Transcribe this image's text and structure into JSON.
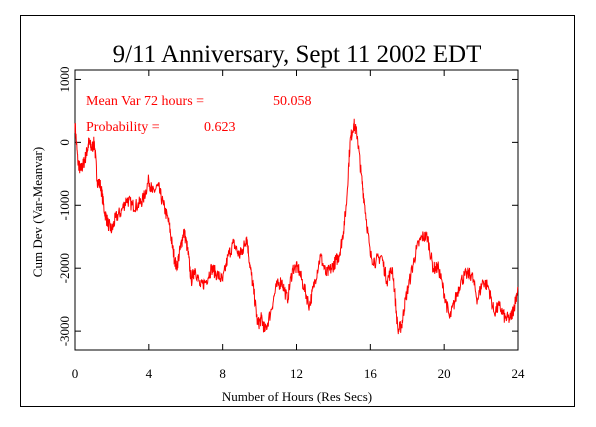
{
  "chart_data": {
    "type": "line",
    "title": "9/11 Anniversary, Sept 11 2002 EDT",
    "xlabel": "Number of Hours (Res Secs)",
    "ylabel": "Cum Dev (Var-Meanvar)",
    "xlim": [
      0,
      24
    ],
    "ylim": [
      -3300,
      1150
    ],
    "x_ticks": [
      0,
      4,
      8,
      12,
      16,
      20,
      24
    ],
    "y_ticks": [
      1000,
      0,
      -1000,
      -2000,
      -3000
    ],
    "line_color": "#ff0000",
    "annotation_color": "#ff0000",
    "annotations": [
      {
        "label": "Mean Var 72 hours =",
        "value": "50.058"
      },
      {
        "label": "Probability =",
        "value": "0.623"
      }
    ],
    "series": [
      {
        "x": [
          0,
          0.15,
          0.3,
          0.45,
          0.6,
          0.75,
          0.9,
          1.05,
          1.2,
          1.4,
          1.6,
          1.8,
          2.0,
          2.2,
          2.5,
          2.8,
          3.1,
          3.4,
          3.7,
          4.0,
          4.2,
          4.5,
          4.8,
          5.1,
          5.3,
          5.5,
          5.7,
          5.9,
          6.1,
          6.3,
          6.5,
          6.8,
          7.1,
          7.4,
          7.7,
          8.0,
          8.3,
          8.6,
          8.9,
          9.1,
          9.3,
          9.5,
          9.7,
          9.9,
          10.1,
          10.3,
          10.6,
          10.9,
          11.2,
          11.5,
          11.8,
          12.1,
          12.4,
          12.7,
          13.0,
          13.3,
          13.6,
          13.9,
          14.1,
          14.3,
          14.5,
          14.7,
          14.9,
          15.1,
          15.3,
          15.5,
          15.7,
          16.0,
          16.3,
          16.6,
          16.9,
          17.2,
          17.5,
          17.7,
          17.9,
          18.2,
          18.5,
          18.8,
          19.1,
          19.4,
          19.7,
          20.0,
          20.3,
          20.6,
          20.9,
          21.2,
          21.5,
          21.8,
          22.1,
          22.4,
          22.7,
          23.0,
          23.3,
          23.6,
          23.8,
          24.0
        ],
        "y": [
          300,
          -300,
          -450,
          -350,
          -200,
          0,
          -100,
          0,
          -600,
          -700,
          -1100,
          -1300,
          -1400,
          -1200,
          -1100,
          -900,
          -1000,
          -1000,
          -900,
          -600,
          -800,
          -700,
          -1000,
          -1300,
          -1700,
          -2000,
          -1700,
          -1400,
          -1700,
          -2200,
          -2000,
          -2300,
          -2200,
          -2000,
          -2100,
          -2200,
          -1800,
          -1600,
          -1800,
          -1700,
          -1500,
          -2000,
          -2400,
          -2900,
          -2800,
          -3000,
          -2700,
          -2300,
          -2200,
          -2500,
          -2000,
          -2000,
          -2300,
          -2600,
          -2200,
          -1800,
          -2100,
          -2000,
          -1900,
          -1800,
          -1500,
          -1000,
          0,
          300,
          100,
          -500,
          -1000,
          -1800,
          -1900,
          -1800,
          -2200,
          -2000,
          -3000,
          -2900,
          -2500,
          -2100,
          -1700,
          -1500,
          -1500,
          -2000,
          -2000,
          -2400,
          -2800,
          -2500,
          -2200,
          -2100,
          -2100,
          -2500,
          -2200,
          -2300,
          -2700,
          -2600,
          -2800,
          -2800,
          -2600,
          -2300
        ]
      }
    ]
  }
}
